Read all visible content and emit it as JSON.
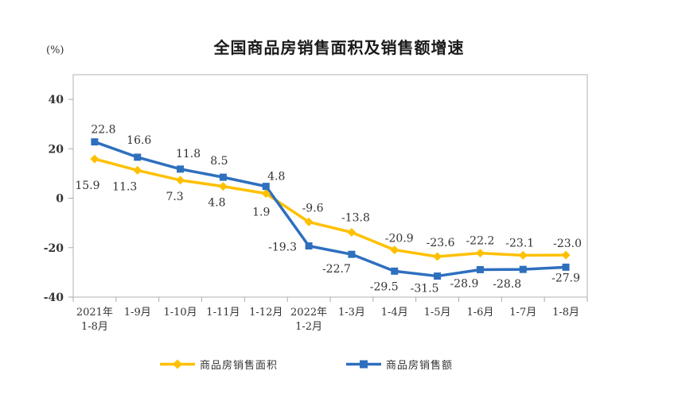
{
  "chart_data": {
    "type": "line",
    "title": "全国商品房销售面积及销售额增速",
    "ylabel": "(%)",
    "xlabel": "",
    "grid": false,
    "legend_position": "bottom",
    "ylim": [
      -40,
      50
    ],
    "yticks": [
      40,
      20,
      0,
      -20,
      -40
    ],
    "categories": [
      "2021年\n1-8月",
      "1-9月",
      "1-10月",
      "1-11月",
      "1-12月",
      "2022年\n1-2月",
      "1-3月",
      "1-4月",
      "1-5月",
      "1-6月",
      "1-7月",
      "1-8月"
    ],
    "series": [
      {
        "name": "商品房销售面积",
        "color": "#FFC000",
        "marker": "diamond",
        "values": [
          15.9,
          11.3,
          7.3,
          4.8,
          1.9,
          -9.6,
          -13.8,
          -20.9,
          -23.6,
          -22.2,
          -23.1,
          -23.0
        ],
        "label_offsets": [
          [
            -9,
            33
          ],
          [
            -16,
            20
          ],
          [
            -7,
            20
          ],
          [
            -8,
            20
          ],
          [
            -6,
            23
          ],
          [
            5,
            -18
          ],
          [
            5,
            -19
          ],
          [
            6,
            -15
          ],
          [
            4,
            -18
          ],
          [
            0,
            -16
          ],
          [
            -4,
            -16
          ],
          [
            2,
            -15
          ]
        ]
      },
      {
        "name": "商品房销售额",
        "color": "#2E6FBE",
        "marker": "square",
        "values": [
          22.8,
          16.6,
          11.8,
          8.5,
          4.8,
          -19.3,
          -22.7,
          -29.5,
          -31.5,
          -28.9,
          -28.8,
          -27.9
        ],
        "label_offsets": [
          [
            11,
            -16
          ],
          [
            2,
            -22
          ],
          [
            10,
            -20
          ],
          [
            -5,
            -21
          ],
          [
            13,
            -13
          ],
          [
            -33,
            1
          ],
          [
            -19,
            18
          ],
          [
            -13,
            19
          ],
          [
            -16,
            15
          ],
          [
            -20,
            17
          ],
          [
            -20,
            18
          ],
          [
            0,
            13
          ]
        ]
      }
    ]
  }
}
